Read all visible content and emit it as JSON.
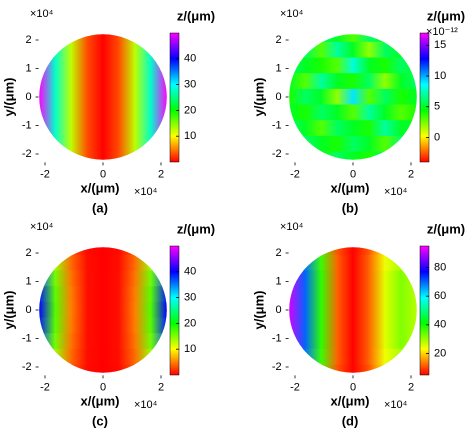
{
  "chart_data": [
    {
      "type": "heatmap",
      "panel_label": "(a)",
      "xlabel": "x/(μm)",
      "ylabel": "y/(μm)",
      "x_exponent_label": "×10⁴",
      "y_exponent_label": "×10⁴",
      "colorbar_label": "z/(μm)",
      "xlim": [
        -2.6,
        2.6
      ],
      "ylim": [
        -2.4,
        2.4
      ],
      "xticks": [
        -2,
        0,
        2
      ],
      "yticks": [
        -2,
        -1,
        0,
        1,
        2
      ],
      "clim": [
        0,
        50
      ],
      "cticks": [
        10,
        20,
        30,
        40
      ],
      "colormap": [
        "#ff0000",
        "#ffff00",
        "#00ff00",
        "#00ffff",
        "#0000ff",
        "#ff00ff"
      ],
      "x": [
        -2.2,
        -1.65,
        -1.1,
        -0.55,
        0,
        0.55,
        1.1,
        1.65,
        2.2
      ],
      "y": [
        2.2,
        1.65,
        1.1,
        0.55,
        0,
        -0.55,
        -1.1,
        -1.65,
        -2.2
      ],
      "z": [
        [
          50,
          28,
          12.5,
          3,
          0,
          3,
          12.5,
          28,
          50
        ],
        [
          50,
          28,
          12.5,
          3,
          0,
          3,
          12.5,
          28,
          50
        ],
        [
          50,
          28,
          12.5,
          3,
          0,
          3,
          12.5,
          28,
          50
        ],
        [
          50,
          28,
          12.5,
          3,
          0,
          3,
          12.5,
          28,
          50
        ],
        [
          50,
          28,
          12.5,
          3,
          0,
          3,
          12.5,
          28,
          50
        ],
        [
          50,
          28,
          12.5,
          3,
          0,
          3,
          12.5,
          28,
          50
        ],
        [
          50,
          28,
          12.5,
          3,
          0,
          3,
          12.5,
          28,
          50
        ],
        [
          50,
          28,
          12.5,
          3,
          0,
          3,
          12.5,
          28,
          50
        ],
        [
          50,
          28,
          12.5,
          3,
          0,
          3,
          12.5,
          28,
          50
        ]
      ]
    },
    {
      "type": "heatmap",
      "panel_label": "(b)",
      "xlabel": "x/(μm)",
      "ylabel": "y/(μm)",
      "x_exponent_label": "×10⁴",
      "y_exponent_label": "×10⁴",
      "colorbar_label": "z/(μm)",
      "colorbar_exponent_label": "×10⁻¹²",
      "xlim": [
        -2.6,
        2.6
      ],
      "ylim": [
        -2.4,
        2.4
      ],
      "xticks": [
        -2,
        0,
        2
      ],
      "yticks": [
        -2,
        -1,
        0,
        1,
        2
      ],
      "clim": [
        -4,
        17
      ],
      "cticks": [
        0,
        5,
        10,
        15
      ],
      "colormap": [
        "#ff0000",
        "#ffff00",
        "#00ff00",
        "#00ffff",
        "#0000ff",
        "#ff00ff"
      ],
      "x": [
        -2.2,
        -1.65,
        -1.1,
        -0.55,
        0,
        0.55,
        1.1,
        1.65,
        2.2
      ],
      "y": [
        2.2,
        1.65,
        1.1,
        0.55,
        0,
        -0.55,
        -1.1,
        -1.65,
        -2.2
      ],
      "z": [
        [
          5,
          4,
          6,
          5,
          3,
          6,
          5,
          4,
          5
        ],
        [
          4,
          6,
          3,
          7,
          5,
          2,
          6,
          5,
          4
        ],
        [
          6,
          5,
          4,
          3,
          8,
          5,
          4,
          6,
          5
        ],
        [
          5,
          3,
          7,
          5,
          4,
          6,
          2,
          5,
          6
        ],
        [
          4,
          6,
          5,
          2,
          9,
          3,
          6,
          4,
          5
        ],
        [
          5,
          4,
          6,
          5,
          3,
          7,
          5,
          3,
          4
        ],
        [
          6,
          5,
          3,
          6,
          5,
          4,
          7,
          5,
          5
        ],
        [
          4,
          6,
          5,
          4,
          6,
          5,
          3,
          6,
          4
        ],
        [
          5,
          5,
          4,
          6,
          5,
          4,
          6,
          5,
          5
        ]
      ]
    },
    {
      "type": "heatmap",
      "panel_label": "(c)",
      "xlabel": "x/(μm)",
      "ylabel": "y/(μm)",
      "x_exponent_label": "×10⁴",
      "y_exponent_label": "×10⁴",
      "colorbar_label": "z/(μm)",
      "xlim": [
        -2.6,
        2.6
      ],
      "ylim": [
        -2.4,
        2.4
      ],
      "xticks": [
        -2,
        0,
        2
      ],
      "yticks": [
        -2,
        -1,
        0,
        1,
        2
      ],
      "clim": [
        0,
        50
      ],
      "cticks": [
        10,
        20,
        30,
        40
      ],
      "colormap": [
        "#ff0000",
        "#ffff00",
        "#00ff00",
        "#00ffff",
        "#0000ff",
        "#ff00ff"
      ],
      "x": [
        -2.2,
        -1.65,
        -1.1,
        -0.55,
        0,
        0.55,
        1.1,
        1.65,
        2.2
      ],
      "y": [
        2.2,
        1.65,
        1.1,
        0.55,
        0,
        -0.55,
        -1.1,
        -1.65,
        -2.2
      ],
      "z": [
        [
          28,
          11.8,
          3.5,
          0.4,
          0,
          0.4,
          3.5,
          11.8,
          28
        ],
        [
          33.2,
          14,
          4.2,
          0.5,
          0,
          0.5,
          4.2,
          14,
          33.2
        ],
        [
          37,
          15.6,
          4.6,
          0.6,
          0,
          0.6,
          4.6,
          15.6,
          37
        ],
        [
          39.2,
          16.6,
          4.9,
          0.6,
          0,
          0.6,
          4.9,
          16.6,
          39.2
        ],
        [
          40,
          16.9,
          5,
          0.6,
          0,
          0.6,
          5,
          16.9,
          40
        ],
        [
          39.2,
          16.6,
          4.9,
          0.6,
          0,
          0.6,
          4.9,
          16.6,
          39.2
        ],
        [
          37,
          15.6,
          4.6,
          0.6,
          0,
          0.6,
          4.6,
          15.6,
          37
        ],
        [
          33.2,
          14,
          4.2,
          0.5,
          0,
          0.5,
          4.2,
          14,
          33.2
        ],
        [
          28,
          11.8,
          3.5,
          0.4,
          0,
          0.4,
          3.5,
          11.8,
          28
        ]
      ]
    },
    {
      "type": "heatmap",
      "panel_label": "(d)",
      "xlabel": "x/(μm)",
      "ylabel": "y/(μm)",
      "x_exponent_label": "×10⁴",
      "y_exponent_label": "×10⁴",
      "colorbar_label": "z/(μm)",
      "xlim": [
        -2.6,
        2.6
      ],
      "ylim": [
        -2.4,
        2.4
      ],
      "xticks": [
        -2,
        0,
        2
      ],
      "yticks": [
        -2,
        -1,
        0,
        1,
        2
      ],
      "clim": [
        5,
        95
      ],
      "cticks": [
        20,
        40,
        60,
        80
      ],
      "colormap": [
        "#ff0000",
        "#ffff00",
        "#00ff00",
        "#00ffff",
        "#0000ff",
        "#ff00ff"
      ],
      "x": [
        -2.2,
        -1.65,
        -1.1,
        -0.55,
        0,
        0.55,
        1.1,
        1.65,
        2.2
      ],
      "y": [
        2.2,
        1.65,
        1.1,
        0.55,
        0,
        -0.55,
        -1.1,
        -1.65,
        -2.2
      ],
      "z": [
        [
          90,
          68,
          36,
          11,
          5,
          11,
          22,
          26,
          24
        ],
        [
          91,
          69,
          37,
          12,
          5,
          12,
          24,
          29,
          26
        ],
        [
          92,
          70,
          38,
          12,
          5,
          12,
          25,
          32,
          28
        ],
        [
          92,
          70,
          38,
          12,
          5,
          12,
          25,
          32,
          28
        ],
        [
          92,
          70,
          38,
          12,
          5,
          12,
          25,
          32,
          28
        ],
        [
          92,
          70,
          38,
          12,
          5,
          12,
          25,
          32,
          28
        ],
        [
          92,
          70,
          38,
          12,
          5,
          12,
          25,
          32,
          28
        ],
        [
          91,
          69,
          37,
          12,
          5,
          12,
          24,
          29,
          26
        ],
        [
          90,
          68,
          36,
          11,
          5,
          11,
          22,
          26,
          24
        ]
      ]
    }
  ]
}
